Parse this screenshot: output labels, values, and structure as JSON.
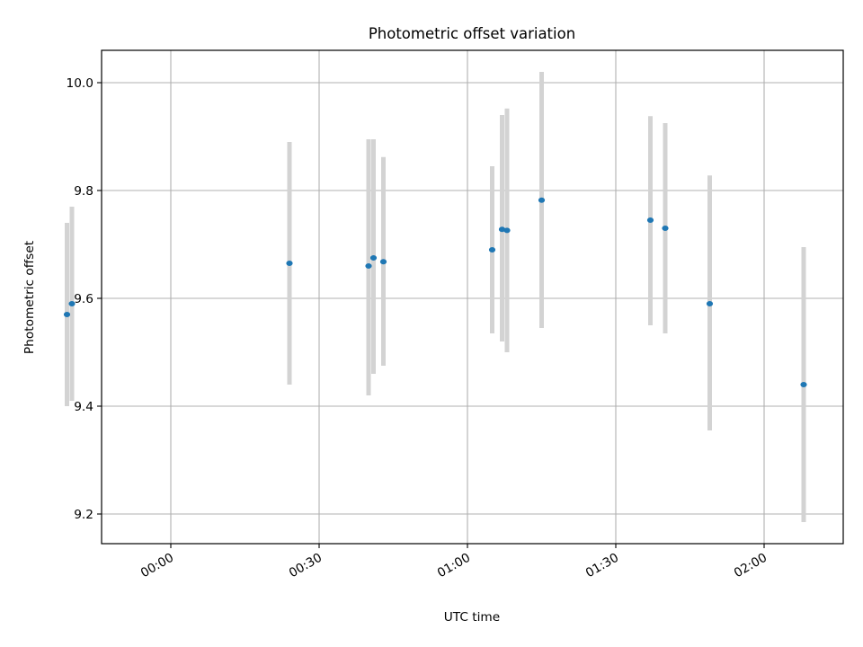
{
  "chart_data": {
    "type": "scatter",
    "title": "Photometric offset variation",
    "xlabel": "UTC time",
    "ylabel": "Photometric offset",
    "x_ticks": [
      "00:00",
      "00:30",
      "01:00",
      "01:30",
      "02:00"
    ],
    "y_ticks": [
      "9.2",
      "9.4",
      "9.6",
      "9.8",
      "10.0"
    ],
    "ylim": [
      9.145,
      10.06
    ],
    "xlim": [
      "23:46",
      "02:16"
    ],
    "grid": true,
    "colors": {
      "point": "#1f77b4",
      "errorbar": "#d3d3d3",
      "grid": "#b0b0b0"
    },
    "points": [
      {
        "x": "23:39",
        "y": 9.57,
        "err_low": 9.4,
        "err_high": 9.74
      },
      {
        "x": "23:40",
        "y": 9.59,
        "err_low": 9.41,
        "err_high": 9.77
      },
      {
        "x": "00:24",
        "y": 9.665,
        "err_low": 9.44,
        "err_high": 9.89
      },
      {
        "x": "00:40",
        "y": 9.66,
        "err_low": 9.42,
        "err_high": 9.895
      },
      {
        "x": "00:41",
        "y": 9.675,
        "err_low": 9.46,
        "err_high": 9.895
      },
      {
        "x": "00:43",
        "y": 9.668,
        "err_low": 9.475,
        "err_high": 9.862
      },
      {
        "x": "01:05",
        "y": 9.69,
        "err_low": 9.535,
        "err_high": 9.845
      },
      {
        "x": "01:07",
        "y": 9.728,
        "err_low": 9.52,
        "err_high": 9.94
      },
      {
        "x": "01:08",
        "y": 9.726,
        "err_low": 9.5,
        "err_high": 9.952
      },
      {
        "x": "01:15",
        "y": 9.782,
        "err_low": 9.545,
        "err_high": 10.02
      },
      {
        "x": "01:37",
        "y": 9.745,
        "err_low": 9.55,
        "err_high": 9.938
      },
      {
        "x": "01:40",
        "y": 9.73,
        "err_low": 9.535,
        "err_high": 9.925
      },
      {
        "x": "01:49",
        "y": 9.59,
        "err_low": 9.355,
        "err_high": 9.828
      },
      {
        "x": "02:08",
        "y": 9.44,
        "err_low": 9.185,
        "err_high": 9.695
      }
    ]
  }
}
